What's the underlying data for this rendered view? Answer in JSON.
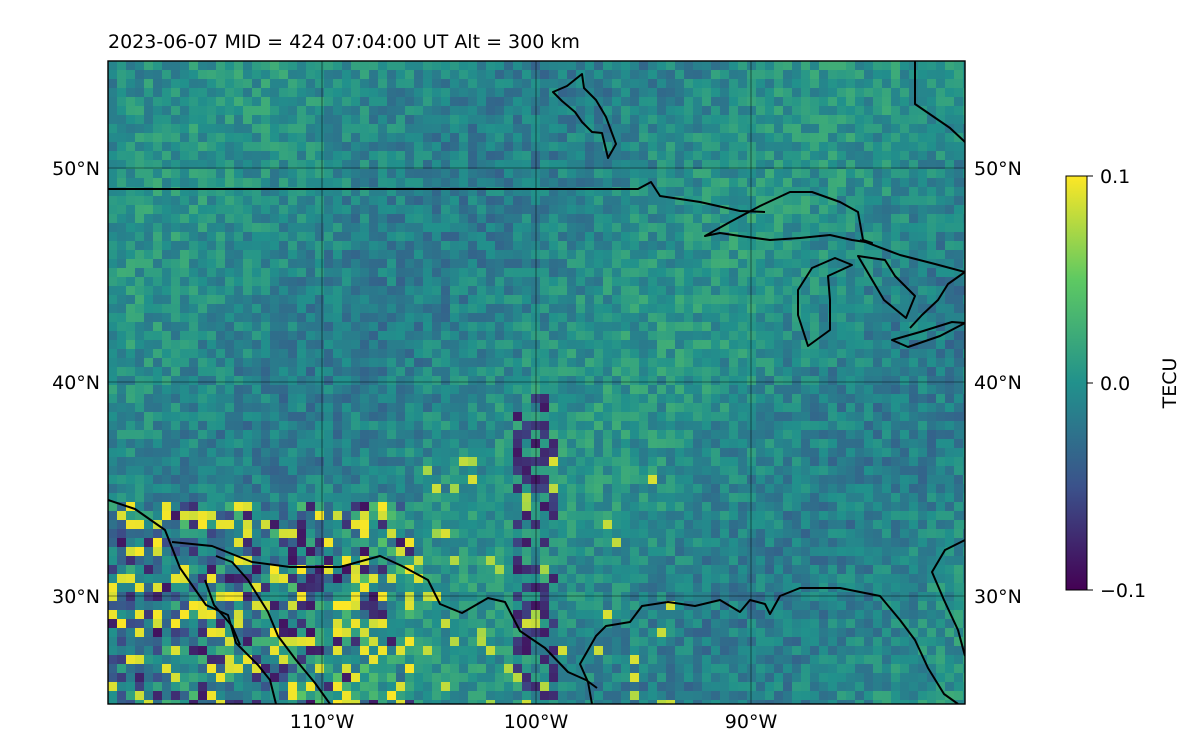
{
  "title": "2023-06-07  MID = 424    07:04:00  UT  Alt = 300 km",
  "map": {
    "lon_range": [
      -120,
      -80
    ],
    "lat_range": [
      25,
      55
    ],
    "lon_grid": [
      -110,
      -100,
      -90
    ],
    "lat_grid": [
      30,
      40,
      50
    ],
    "lon_tick_labels": [
      "110°W",
      "100°W",
      "90°W"
    ],
    "lat_tick_labels": [
      "30°N",
      "40°N",
      "50°N"
    ],
    "gridlines": true,
    "coastlines": true,
    "field": "differential TEC (detrended), pixelated noise with strong anomalies over SW USA / Mexico"
  },
  "colorbar": {
    "colormap": "viridis",
    "label": "TECU",
    "min": -0.1,
    "max": 0.1,
    "ticks": [
      0.1,
      0.0,
      -0.1
    ],
    "tick_labels": [
      "0.1",
      "0.0",
      "−0.1"
    ],
    "colors": [
      "#440154",
      "#3b528b",
      "#21918c",
      "#5ec962",
      "#fde725"
    ]
  }
}
